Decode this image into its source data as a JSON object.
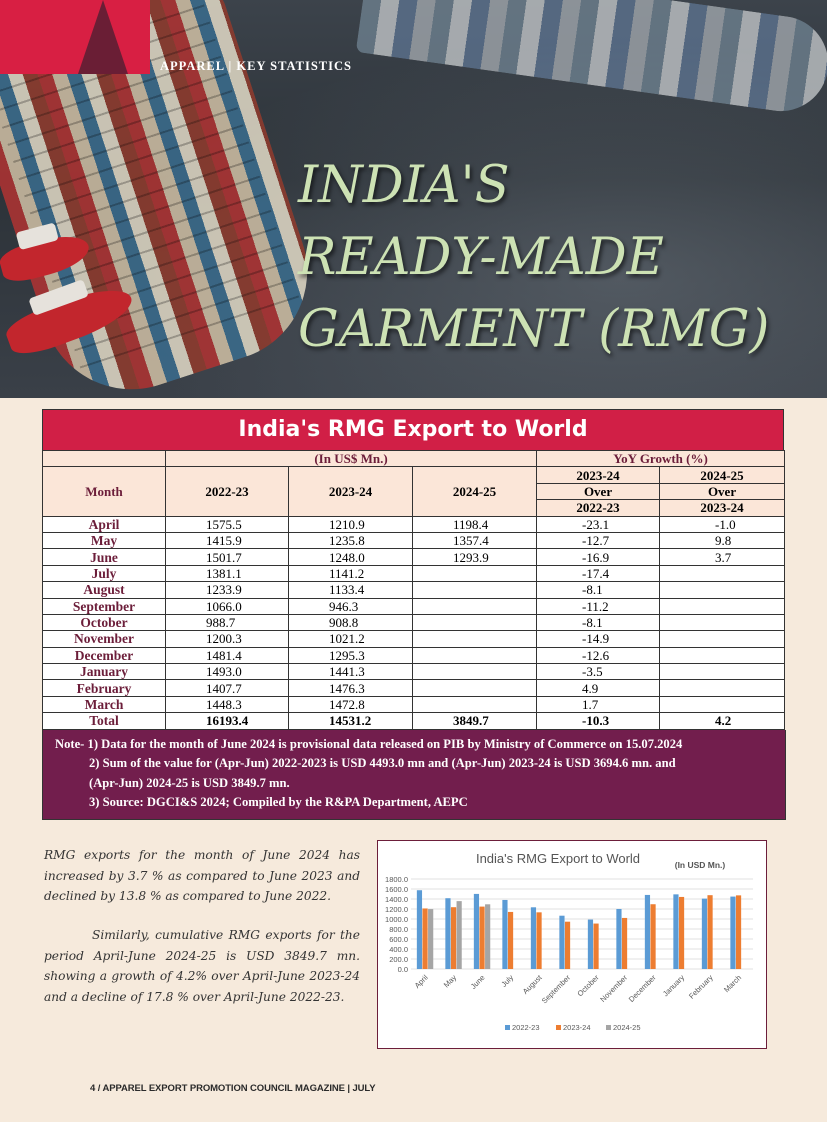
{
  "header": {
    "category": "APPAREL | KEY STATISTICS",
    "title_lines": [
      "INDIA'S",
      "READY-MADE",
      "GARMENT (RMG)"
    ]
  },
  "table": {
    "title": "India's RMG Export to World",
    "unit_label": "(In US$ Mn.)",
    "growth_label": "YoY Growth (%)",
    "month_header": "Month",
    "year_headers": [
      "2022-23",
      "2023-24",
      "2024-25"
    ],
    "growth_headers": [
      {
        "top": "2023-24",
        "mid": "Over",
        "bottom": "2022-23"
      },
      {
        "top": "2024-25",
        "mid": "Over",
        "bottom": "2023-24"
      }
    ],
    "rows": [
      {
        "month": "April",
        "y1": "1575.5",
        "y2": "1210.9",
        "y3": "1198.4",
        "g1": "-23.1",
        "g2": "-1.0"
      },
      {
        "month": "May",
        "y1": "1415.9",
        "y2": "1235.8",
        "y3": "1357.4",
        "g1": "-12.7",
        "g2": "9.8"
      },
      {
        "month": "June",
        "y1": "1501.7",
        "y2": "1248.0",
        "y3": "1293.9",
        "g1": "-16.9",
        "g2": "3.7"
      },
      {
        "month": "July",
        "y1": "1381.1",
        "y2": "1141.2",
        "y3": "",
        "g1": "-17.4",
        "g2": ""
      },
      {
        "month": "August",
        "y1": "1233.9",
        "y2": "1133.4",
        "y3": "",
        "g1": "-8.1",
        "g2": ""
      },
      {
        "month": "September",
        "y1": "1066.0",
        "y2": "946.3",
        "y3": "",
        "g1": "-11.2",
        "g2": ""
      },
      {
        "month": "October",
        "y1": "988.7",
        "y2": "908.8",
        "y3": "",
        "g1": "-8.1",
        "g2": ""
      },
      {
        "month": "November",
        "y1": "1200.3",
        "y2": "1021.2",
        "y3": "",
        "g1": "-14.9",
        "g2": ""
      },
      {
        "month": "December",
        "y1": "1481.4",
        "y2": "1295.3",
        "y3": "",
        "g1": "-12.6",
        "g2": ""
      },
      {
        "month": "January",
        "y1": "1493.0",
        "y2": "1441.3",
        "y3": "",
        "g1": "-3.5",
        "g2": ""
      },
      {
        "month": "February",
        "y1": "1407.7",
        "y2": "1476.3",
        "y3": "",
        "g1": "4.9",
        "g2": ""
      },
      {
        "month": "March",
        "y1": "1448.3",
        "y2": "1472.8",
        "y3": "",
        "g1": "1.7",
        "g2": ""
      }
    ],
    "total": {
      "month": "Total",
      "y1": "16193.4",
      "y2": "14531.2",
      "y3": "3849.7",
      "g1": "-10.3",
      "g2": "4.2"
    }
  },
  "notes": [
    "Note- 1) Data for the month of June 2024 is provisional data released on PIB by Ministry of Commerce on 15.07.2024",
    "2) Sum of the value for (Apr-Jun) 2022-2023 is USD 4493.0 mn and (Apr-Jun) 2023-24 is USD 3694.6 mn. and",
    "(Apr-Jun) 2024-25 is USD 3849.7 mn.",
    "3) Source: DGCI&S 2024; Compiled by the R&PA Department, AEPC"
  ],
  "body": {
    "paragraph1": "RMG exports for the month of June 2024 has increased by 3.7 % as compared to June 2023 and declined by 13.8 % as compared to June 2022.",
    "paragraph2": "Similarly, cumulative RMG exports for the period April-June 2024-25 is USD 3849.7 mn. showing a growth of 4.2% over April-June 2023-24 and a decline of 17.8 % over April-June 2022-23."
  },
  "chart_data": {
    "type": "bar",
    "title": "India's RMG Export to World",
    "subtitle": "(In USD Mn.)",
    "categories": [
      "April",
      "May",
      "June",
      "July",
      "August",
      "September",
      "October",
      "November",
      "December",
      "January",
      "February",
      "March"
    ],
    "series": [
      {
        "name": "2022-23",
        "color": "#5b9bd5",
        "values": [
          1575.5,
          1415.9,
          1501.7,
          1381.1,
          1233.9,
          1066.0,
          988.7,
          1200.3,
          1481.4,
          1493.0,
          1407.7,
          1448.3
        ]
      },
      {
        "name": "2023-24",
        "color": "#ed7d31",
        "values": [
          1210.9,
          1235.8,
          1248.0,
          1141.2,
          1133.4,
          946.3,
          908.8,
          1021.2,
          1295.3,
          1441.3,
          1476.3,
          1472.8
        ]
      },
      {
        "name": "2024-25",
        "color": "#a5a5a5",
        "values": [
          1198.4,
          1357.4,
          1293.9,
          null,
          null,
          null,
          null,
          null,
          null,
          null,
          null,
          null
        ]
      }
    ],
    "ylim": [
      0,
      1800
    ],
    "yticks": [
      "0.0",
      "200.0",
      "400.0",
      "600.0",
      "800.0",
      "1000.0",
      "1200.0",
      "1400.0",
      "1600.0",
      "1800.0"
    ],
    "grid": true,
    "legend": "bottom"
  },
  "footer": {
    "page_number": "4",
    "text": "APPAREL EXPORT PROMOTION COUNCIL MAGAZINE | JULY"
  }
}
